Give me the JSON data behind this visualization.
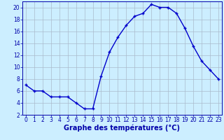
{
  "hours": [
    0,
    1,
    2,
    3,
    4,
    5,
    6,
    7,
    8,
    9,
    10,
    11,
    12,
    13,
    14,
    15,
    16,
    17,
    18,
    19,
    20,
    21,
    22,
    23
  ],
  "temps": [
    7,
    6,
    6,
    5,
    5,
    5,
    4,
    3,
    3,
    8.5,
    12.5,
    15,
    17,
    18.5,
    19,
    20.5,
    20,
    20,
    19,
    16.5,
    13.5,
    11,
    9.5,
    8
  ],
  "line_color": "#0000cc",
  "marker": "+",
  "marker_size": 3.5,
  "marker_linewidth": 1.0,
  "bg_color": "#cceeff",
  "grid_color": "#aabbcc",
  "xlabel": "Graphe des températures (°C)",
  "ylim_min": 2,
  "ylim_max": 21,
  "xlim_min": 0,
  "xlim_max": 23,
  "yticks": [
    2,
    4,
    6,
    8,
    10,
    12,
    14,
    16,
    18,
    20
  ],
  "xticks": [
    0,
    1,
    2,
    3,
    4,
    5,
    6,
    7,
    8,
    9,
    10,
    11,
    12,
    13,
    14,
    15,
    16,
    17,
    18,
    19,
    20,
    21,
    22,
    23
  ],
  "axis_color": "#0000aa",
  "tick_labelsize": 5.5,
  "xlabel_fontsize": 7,
  "xlabel_fontweight": "bold",
  "linewidth": 1.0
}
